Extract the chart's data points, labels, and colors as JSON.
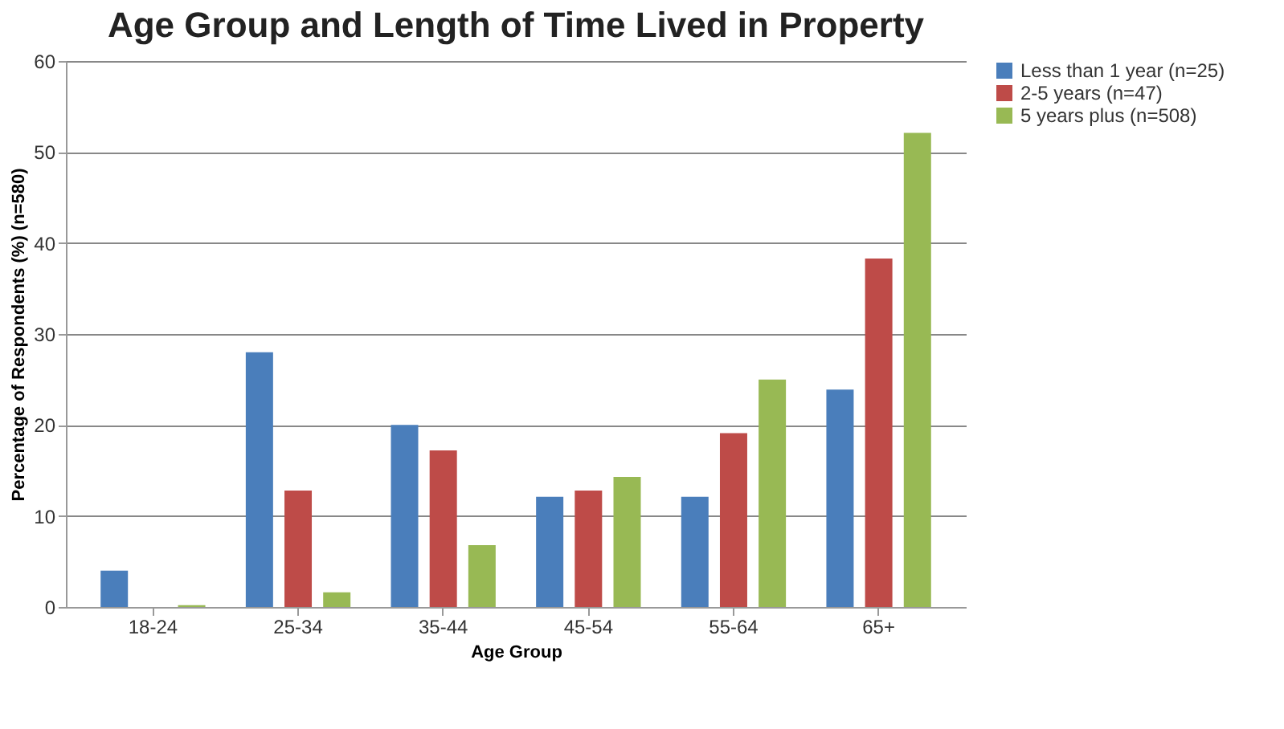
{
  "chart_data": {
    "type": "bar",
    "title": "Age Group and Length of Time Lived in Property",
    "xlabel": "Age Group",
    "ylabel": "Percentage of Respondents (%) (n=580)",
    "categories": [
      "18-24",
      "25-34",
      "35-44",
      "45-54",
      "55-64",
      "65+"
    ],
    "series": [
      {
        "name": "Less than 1 year (n=25)",
        "color": "#4a7ebb",
        "values": [
          4,
          28,
          20,
          12.1,
          12.1,
          23.9
        ]
      },
      {
        "name": "2-5 years (n=47)",
        "color": "#be4b48",
        "values": [
          0,
          12.8,
          17.2,
          12.8,
          19.1,
          38.3
        ]
      },
      {
        "name": "5 years plus (n=508)",
        "color": "#98b954",
        "values": [
          0.2,
          1.6,
          6.8,
          14.3,
          25,
          52.1
        ]
      }
    ],
    "ylim": [
      0,
      60
    ],
    "yticks": [
      0,
      10,
      20,
      30,
      40,
      50,
      60
    ],
    "grid": "y",
    "legend": "right"
  }
}
